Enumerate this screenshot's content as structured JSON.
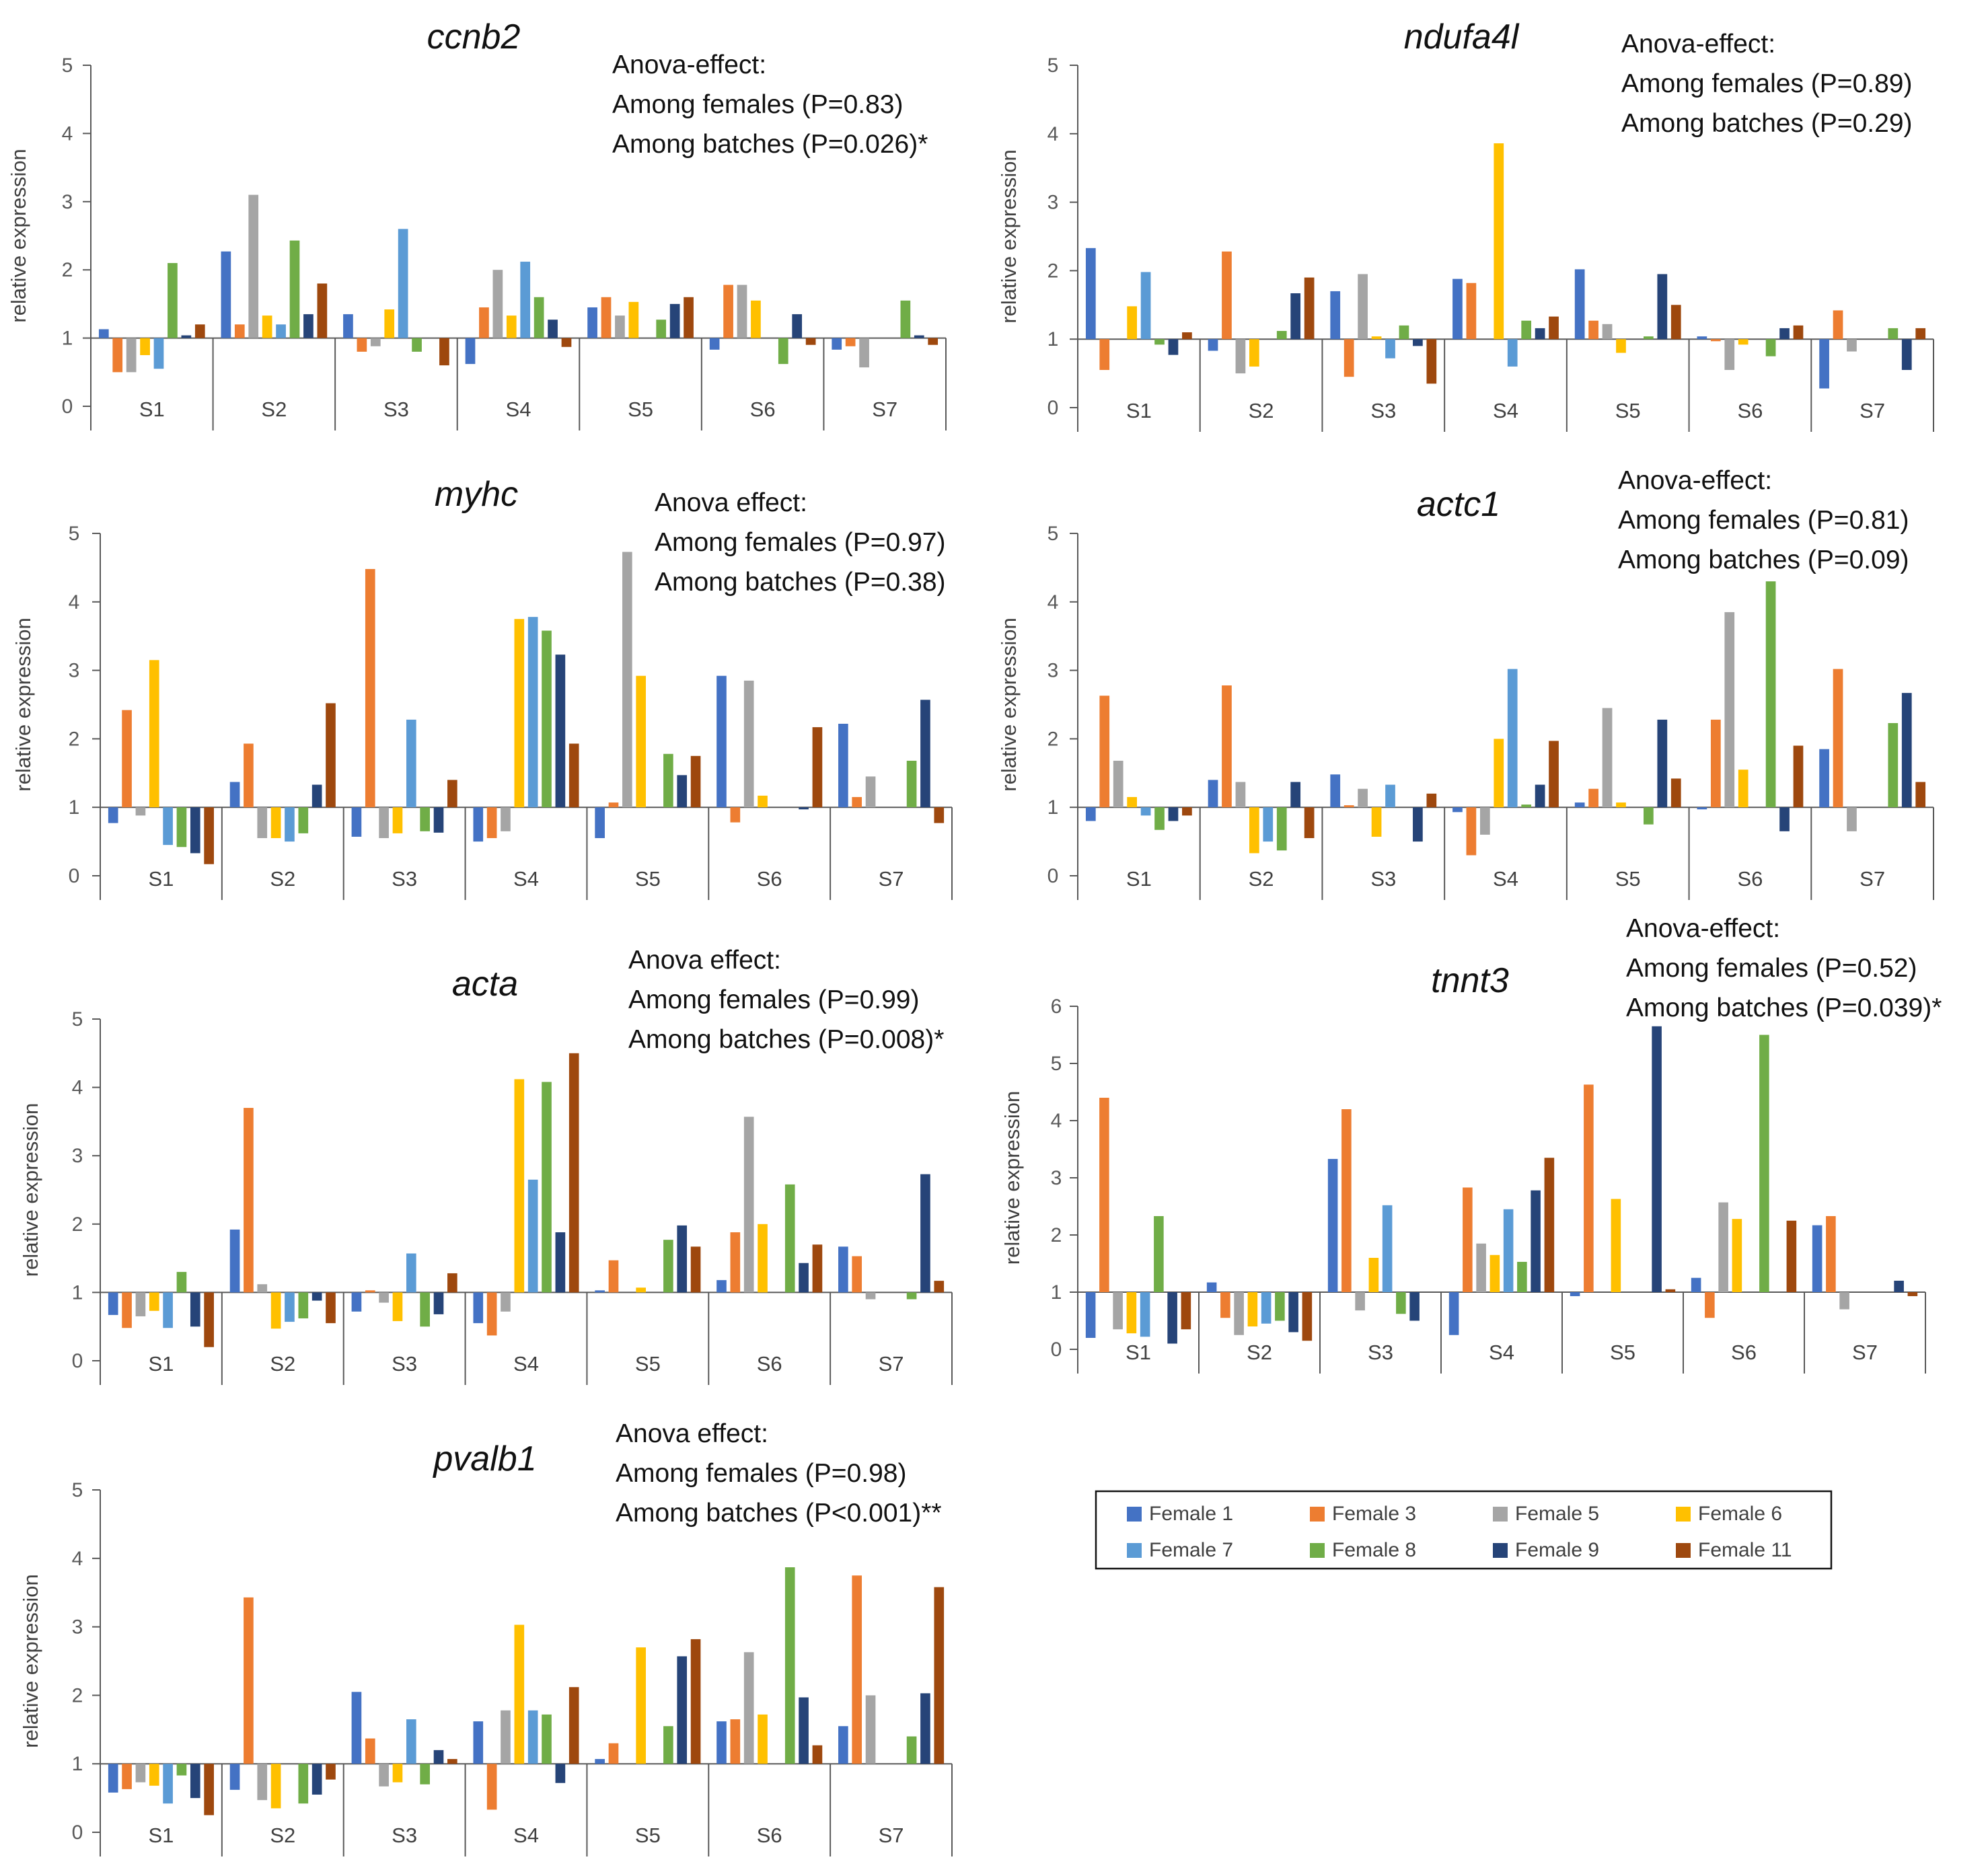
{
  "legend": [
    {
      "name": "Female 1",
      "color": "#4472C4"
    },
    {
      "name": "Female 3",
      "color": "#ED7D31"
    },
    {
      "name": "Female 5",
      "color": "#A5A5A5"
    },
    {
      "name": "Female 6",
      "color": "#FFC000"
    },
    {
      "name": "Female 7",
      "color": "#5B9BD5"
    },
    {
      "name": "Female 8",
      "color": "#70AD47"
    },
    {
      "name": "Female 9",
      "color": "#264478"
    },
    {
      "name": "Female 11",
      "color": "#9E480E"
    }
  ],
  "chart_data": [
    {
      "type": "bar",
      "title": "ccnb2",
      "ylabel": "relative expression",
      "xlabel": "",
      "ylim": [
        0,
        5
      ],
      "baseline": 1,
      "categories": [
        "S1",
        "S2",
        "S3",
        "S4",
        "S5",
        "S6",
        "S7"
      ],
      "anova": {
        "heading": "Anova-effect:",
        "females": "Among females (P=0.83)",
        "batches": "Among batches (P=0.026)*"
      },
      "values": [
        [
          1.13,
          0.5,
          0.5,
          0.75,
          0.55,
          2.1,
          1.04,
          1.2
        ],
        [
          2.27,
          1.2,
          3.1,
          1.33,
          1.2,
          2.43,
          1.35,
          1.8
        ],
        [
          1.35,
          0.8,
          0.88,
          1.42,
          2.6,
          0.8,
          1.0,
          0.6
        ],
        [
          0.62,
          1.45,
          2.0,
          1.33,
          2.12,
          1.6,
          1.27,
          0.87
        ],
        [
          1.45,
          1.6,
          1.33,
          1.53,
          1.0,
          1.27,
          1.5,
          1.6
        ],
        [
          0.83,
          1.78,
          1.78,
          1.55,
          1.0,
          0.62,
          1.35,
          0.9
        ],
        [
          0.83,
          0.88,
          0.57,
          1.0,
          1.0,
          1.55,
          1.04,
          0.9
        ]
      ]
    },
    {
      "type": "bar",
      "title": "ndufa4l",
      "ylabel": "relative expression",
      "xlabel": "",
      "ylim": [
        0,
        5
      ],
      "baseline": 1,
      "categories": [
        "S1",
        "S2",
        "S3",
        "S4",
        "S5",
        "S6",
        "S7"
      ],
      "anova": {
        "heading": "Anova-effect:",
        "females": "Among females (P=0.89)",
        "batches": "Among batches (P=0.29)"
      },
      "values": [
        [
          2.33,
          0.55,
          1.0,
          1.48,
          1.98,
          0.92,
          0.77,
          1.1
        ],
        [
          0.83,
          2.28,
          0.5,
          0.6,
          1.0,
          1.12,
          1.67,
          1.9
        ],
        [
          1.7,
          0.45,
          1.95,
          1.04,
          0.72,
          1.2,
          0.9,
          0.35
        ],
        [
          1.88,
          1.82,
          1.0,
          3.86,
          0.6,
          1.27,
          1.16,
          1.33
        ],
        [
          2.02,
          1.27,
          1.22,
          0.8,
          1.0,
          1.04,
          1.95,
          1.5
        ],
        [
          1.04,
          0.97,
          0.55,
          0.92,
          1.0,
          0.75,
          1.16,
          1.2
        ],
        [
          0.28,
          1.42,
          0.82,
          1.0,
          1.0,
          1.16,
          0.55,
          1.16
        ]
      ]
    },
    {
      "type": "bar",
      "title": "myhc",
      "ylabel": "relative expression",
      "xlabel": "",
      "ylim": [
        0,
        5
      ],
      "baseline": 1,
      "categories": [
        "S1",
        "S2",
        "S3",
        "S4",
        "S5",
        "S6",
        "S7"
      ],
      "anova": {
        "heading": "Anova effect:",
        "females": "Among females (P=0.97)",
        "batches": "Among batches (P=0.38)"
      },
      "values": [
        [
          0.77,
          2.42,
          0.88,
          3.15,
          0.45,
          0.42,
          0.33,
          0.17
        ],
        [
          1.37,
          1.93,
          0.55,
          0.55,
          0.5,
          0.62,
          1.33,
          2.52
        ],
        [
          0.57,
          4.48,
          0.55,
          0.62,
          2.28,
          0.65,
          0.63,
          1.4
        ],
        [
          0.5,
          0.55,
          0.65,
          3.75,
          3.78,
          3.58,
          3.23,
          1.93
        ],
        [
          0.55,
          1.07,
          4.73,
          2.92,
          1.0,
          1.78,
          1.47,
          1.75
        ],
        [
          2.92,
          0.78,
          2.85,
          1.17,
          1.0,
          1.0,
          0.97,
          2.17
        ],
        [
          2.22,
          1.15,
          1.45,
          1.0,
          1.0,
          1.68,
          2.57,
          0.77
        ]
      ]
    },
    {
      "type": "bar",
      "title": "actc1",
      "ylabel": "relative expression",
      "xlabel": "",
      "ylim": [
        0,
        5
      ],
      "baseline": 1,
      "categories": [
        "S1",
        "S2",
        "S3",
        "S4",
        "S5",
        "S6",
        "S7"
      ],
      "anova": {
        "heading": "Anova-effect:",
        "females": "Among females (P=0.81)",
        "batches": "Among batches (P=0.09)"
      },
      "values": [
        [
          0.8,
          2.63,
          1.68,
          1.15,
          0.88,
          0.67,
          0.8,
          0.88
        ],
        [
          1.4,
          2.78,
          1.37,
          0.33,
          0.5,
          0.37,
          1.37,
          0.55
        ],
        [
          1.48,
          1.03,
          1.27,
          0.57,
          1.33,
          1.0,
          0.5,
          1.2
        ],
        [
          0.93,
          0.3,
          0.6,
          2.0,
          3.02,
          1.04,
          1.33,
          1.97
        ],
        [
          1.07,
          1.27,
          2.45,
          1.07,
          1.0,
          0.75,
          2.28,
          1.42
        ],
        [
          0.97,
          2.28,
          3.85,
          1.55,
          1.0,
          4.3,
          0.65,
          1.9
        ],
        [
          1.85,
          3.02,
          0.65,
          1.0,
          1.0,
          2.23,
          2.67,
          1.37
        ]
      ]
    },
    {
      "type": "bar",
      "title": "acta",
      "ylabel": "relative expression",
      "xlabel": "",
      "ylim": [
        0,
        5
      ],
      "baseline": 1,
      "categories": [
        "S1",
        "S2",
        "S3",
        "S4",
        "S5",
        "S6",
        "S7"
      ],
      "anova": {
        "heading": "Anova effect:",
        "females": "Among females (P=0.99)",
        "batches": "Among batches (P=0.008)*"
      },
      "values": [
        [
          0.67,
          0.48,
          0.65,
          0.73,
          0.48,
          1.3,
          0.5,
          0.2
        ],
        [
          1.92,
          3.7,
          1.12,
          0.47,
          0.57,
          0.62,
          0.88,
          0.55
        ],
        [
          0.72,
          1.03,
          0.85,
          0.58,
          1.57,
          0.5,
          0.68,
          1.28
        ],
        [
          0.55,
          0.37,
          0.72,
          4.12,
          2.65,
          4.08,
          1.88,
          4.5
        ],
        [
          1.03,
          1.47,
          1.0,
          1.07,
          1.0,
          1.77,
          1.98,
          1.67
        ],
        [
          1.18,
          1.88,
          3.57,
          2.0,
          1.0,
          2.58,
          1.43,
          1.7
        ],
        [
          1.67,
          1.53,
          0.9,
          1.0,
          1.0,
          0.9,
          2.73,
          1.17
        ]
      ]
    },
    {
      "type": "bar",
      "title": "tnnt3",
      "ylabel": "relative expression",
      "xlabel": "",
      "ylim": [
        0,
        6
      ],
      "baseline": 1,
      "categories": [
        "S1",
        "S2",
        "S3",
        "S4",
        "S5",
        "S6",
        "S7"
      ],
      "anova": {
        "heading": "Anova-effect:",
        "females": "Among females (P=0.52)",
        "batches": "Among batches (P=0.039)*"
      },
      "values": [
        [
          0.2,
          4.4,
          0.35,
          0.28,
          0.22,
          2.33,
          0.1,
          0.35
        ],
        [
          1.17,
          0.55,
          0.25,
          0.4,
          0.45,
          0.5,
          0.3,
          0.15
        ],
        [
          3.33,
          4.2,
          0.68,
          1.6,
          2.52,
          0.62,
          0.5,
          1.0
        ],
        [
          0.25,
          2.83,
          1.85,
          1.65,
          2.45,
          1.53,
          2.78,
          3.35
        ],
        [
          0.93,
          4.63,
          1.0,
          2.63,
          1.0,
          1.0,
          5.65,
          1.05
        ],
        [
          1.25,
          0.55,
          2.57,
          2.28,
          1.0,
          5.5,
          1.0,
          2.25
        ],
        [
          2.17,
          2.33,
          0.7,
          1.0,
          1.0,
          1.0,
          1.2,
          0.93
        ]
      ]
    },
    {
      "type": "bar",
      "title": "pvalb1",
      "ylabel": "relative expression",
      "xlabel": "",
      "ylim": [
        0,
        5
      ],
      "baseline": 1,
      "categories": [
        "S1",
        "S2",
        "S3",
        "S4",
        "S5",
        "S6",
        "S7"
      ],
      "anova": {
        "heading": "Anova effect:",
        "females": "Among females (P=0.98)",
        "batches": "Among batches (P<0.001)**"
      },
      "values": [
        [
          0.58,
          0.63,
          0.73,
          0.68,
          0.42,
          0.83,
          0.5,
          0.25
        ],
        [
          0.62,
          3.43,
          0.47,
          0.35,
          1.0,
          0.42,
          0.55,
          0.77
        ],
        [
          2.05,
          1.37,
          0.67,
          0.73,
          1.65,
          0.7,
          1.2,
          1.07
        ],
        [
          1.62,
          0.33,
          1.78,
          3.03,
          1.78,
          1.72,
          0.72,
          2.12
        ],
        [
          1.07,
          1.3,
          1.0,
          2.7,
          1.0,
          1.55,
          2.57,
          2.82
        ],
        [
          1.62,
          1.65,
          2.63,
          1.72,
          1.0,
          3.87,
          1.97,
          1.27
        ],
        [
          1.55,
          3.75,
          2.0,
          1.0,
          1.0,
          1.4,
          2.03,
          3.58
        ]
      ]
    }
  ]
}
